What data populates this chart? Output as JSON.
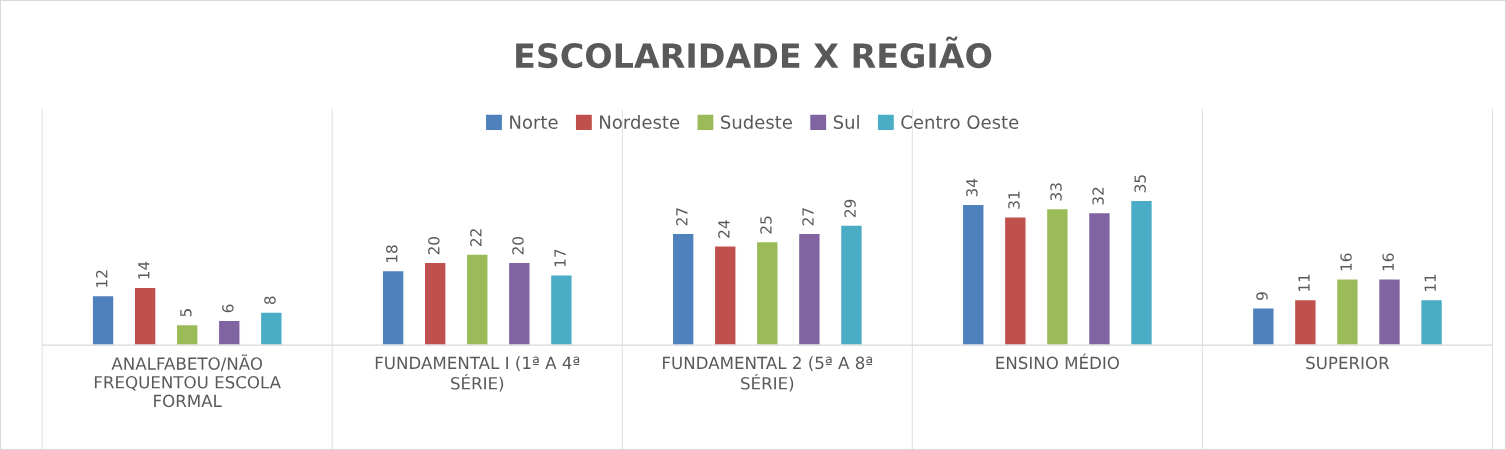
{
  "chart_data": {
    "type": "bar",
    "title": "ESCOLARIDADE X REGIÃO",
    "categories": [
      "ANALFABETO/NÃO FREQUENTOU ESCOLA FORMAL",
      "FUNDAMENTAL I (1ª A 4ª SÉRIE)",
      "FUNDAMENTAL 2 (5ª A 8ª SÉRIE)",
      "ENSINO MÉDIO",
      "SUPERIOR"
    ],
    "series": [
      {
        "name": "Norte",
        "color": "#4f81bd",
        "values": [
          12,
          18,
          27,
          34,
          9
        ]
      },
      {
        "name": "Nordeste",
        "color": "#c0504d",
        "values": [
          14,
          20,
          24,
          31,
          11
        ]
      },
      {
        "name": "Sudeste",
        "color": "#9bbb59",
        "values": [
          5,
          22,
          25,
          33,
          16
        ]
      },
      {
        "name": "Sul",
        "color": "#8064a2",
        "values": [
          6,
          20,
          27,
          32,
          16
        ]
      },
      {
        "name": "Centro Oeste",
        "color": "#4bacc6",
        "values": [
          8,
          17,
          29,
          35,
          11
        ]
      }
    ],
    "data_labels": true,
    "legend": "top",
    "grid": false
  }
}
